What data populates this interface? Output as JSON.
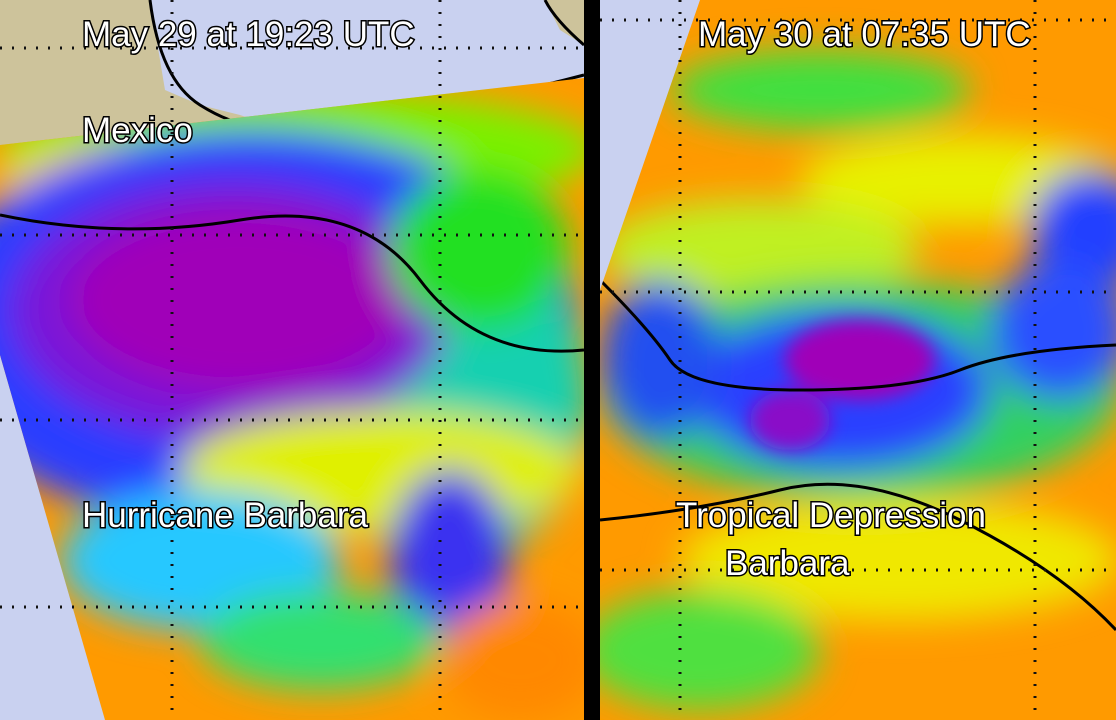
{
  "panels": [
    {
      "timestamp": "May 29 at 19:23 UTC",
      "labels": [
        "Mexico",
        "Hurricane Barbara"
      ]
    },
    {
      "timestamp": "May 30 at 07:35 UTC",
      "labels": [
        "Tropical Depression",
        "Barbara"
      ]
    }
  ]
}
